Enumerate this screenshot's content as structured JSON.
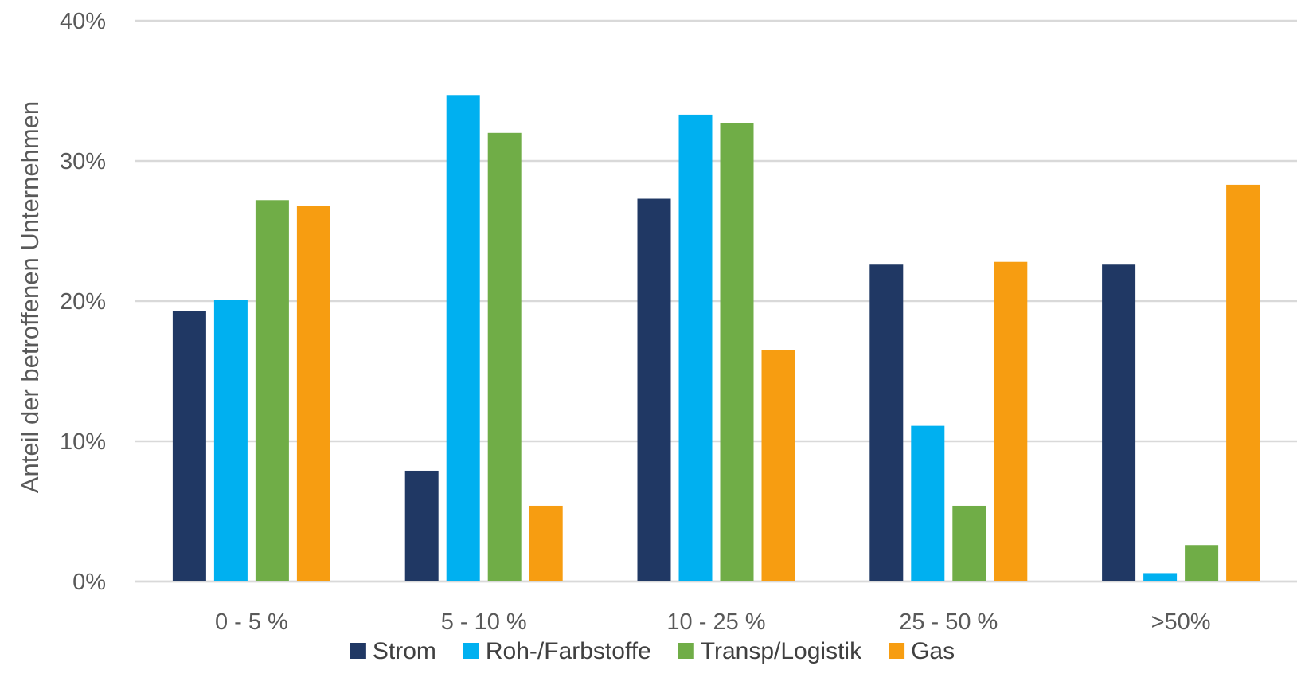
{
  "chart_data": {
    "type": "bar",
    "ylabel": "Anteil der betroffenen Unternehmen",
    "xlabel": "",
    "ylim": [
      0,
      40
    ],
    "yticks": [
      "0%",
      "10%",
      "20%",
      "30%",
      "40%"
    ],
    "ytick_values": [
      0,
      10,
      20,
      30,
      40
    ],
    "categories": [
      "0 - 5 %",
      "5 - 10 %",
      "10 - 25 %",
      "25 - 50 %",
      ">50%"
    ],
    "series": [
      {
        "name": "Strom",
        "color": "#203864",
        "values": [
          19.3,
          7.9,
          27.3,
          22.6,
          22.6
        ]
      },
      {
        "name": "Roh-/Farbstoffe",
        "color": "#00B0F0",
        "values": [
          20.1,
          34.7,
          33.3,
          11.1,
          0.6
        ]
      },
      {
        "name": "Transp/Logistik",
        "color": "#70AD47",
        "values": [
          27.2,
          32.0,
          32.7,
          5.4,
          2.6
        ]
      },
      {
        "name": "Gas",
        "color": "#F79D11",
        "values": [
          26.8,
          5.4,
          16.5,
          22.8,
          28.3
        ]
      }
    ],
    "grid": true,
    "legend_position": "bottom"
  }
}
